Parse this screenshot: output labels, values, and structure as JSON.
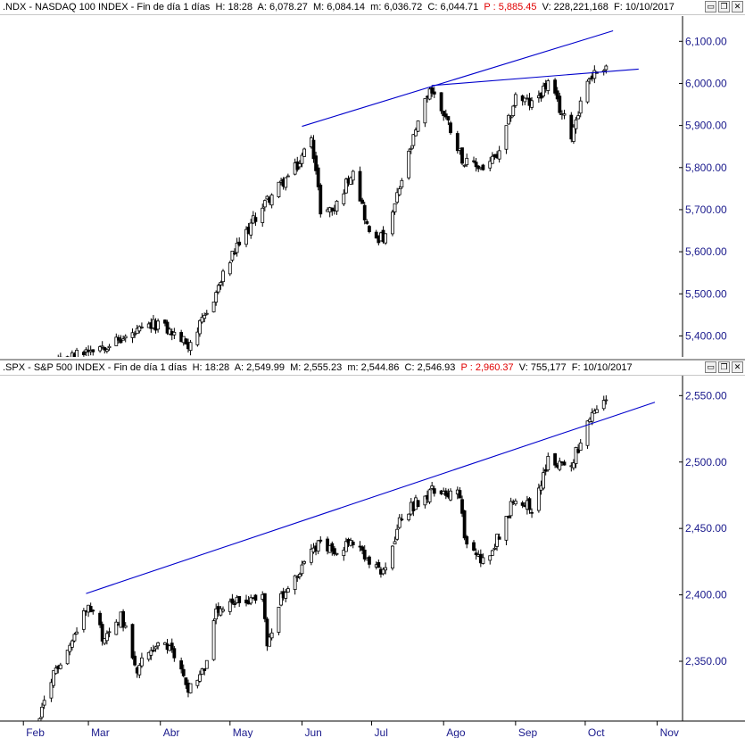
{
  "top_header": {
    "symbol": ".NDX - NASDAQ 100 INDEX - Fin de día 1 días",
    "h": "H: 18:28",
    "a": "A: 6,078.27",
    "m": "M: 6,084.14",
    "mm": "m: 6,036.72",
    "c": "C: 6,044.71",
    "p": "P : 5,885.45",
    "v": "V: 228,221,168",
    "f": "F: 10/10/2017"
  },
  "bottom_header": {
    "symbol": ".SPX - S&P 500 INDEX - Fin de día 1 días",
    "h": "H: 18:28",
    "a": "A: 2,549.99",
    "m": "M: 2,555.23",
    "mm": "m: 2,544.86",
    "c": "C: 2,546.93",
    "p": "P : 2,960.37",
    "v": "V: 755,177",
    "f": "F: 10/10/2017"
  },
  "window_buttons": {
    "minimize": "▭",
    "restore": "❐",
    "close": "✕"
  },
  "colors": {
    "axis_text": "#1a1a8c",
    "trendline": "#0000cc",
    "candle": "#000000",
    "price_red": "#e00000"
  },
  "chart_data": [
    {
      "type": "candlestick",
      "title": ".NDX - NASDAQ 100 INDEX",
      "ylim": [
        5350,
        6160
      ],
      "yticks": [
        "5,400.00",
        "5,500.00",
        "5,600.00",
        "5,700.00",
        "5,800.00",
        "5,900.00",
        "6,000.00",
        "6,100.00"
      ],
      "ytick_values": [
        5400,
        5500,
        5600,
        5700,
        5800,
        5900,
        6000,
        6100
      ],
      "close_path": [
        [
          "2017-02-15",
          5330
        ],
        [
          "2017-03-01",
          5370
        ],
        [
          "2017-03-15",
          5390
        ],
        [
          "2017-03-31",
          5430
        ],
        [
          "2017-04-13",
          5380
        ],
        [
          "2017-04-20",
          5440
        ],
        [
          "2017-05-01",
          5580
        ],
        [
          "2017-05-15",
          5710
        ],
        [
          "2017-05-31",
          5810
        ],
        [
          "2017-06-05",
          5880
        ],
        [
          "2017-06-09",
          5700
        ],
        [
          "2017-06-15",
          5700
        ],
        [
          "2017-06-23",
          5800
        ],
        [
          "2017-06-30",
          5640
        ],
        [
          "2017-07-07",
          5630
        ],
        [
          "2017-07-17",
          5830
        ],
        [
          "2017-07-26",
          5990
        ],
        [
          "2017-08-02",
          5920
        ],
        [
          "2017-08-10",
          5810
        ],
        [
          "2017-08-18",
          5800
        ],
        [
          "2017-08-25",
          5830
        ],
        [
          "2017-09-01",
          5970
        ],
        [
          "2017-09-08",
          5950
        ],
        [
          "2017-09-15",
          6000
        ],
        [
          "2017-09-25",
          5880
        ],
        [
          "2017-10-02",
          6010
        ],
        [
          "2017-10-10",
          6045
        ]
      ],
      "trendlines": [
        {
          "from": [
            "2017-06-01",
            5898
          ],
          "to": [
            "2017-10-13",
            6125
          ]
        },
        {
          "from": [
            "2017-07-27",
            5995
          ],
          "to": [
            "2017-10-24",
            6034
          ]
        }
      ]
    },
    {
      "type": "candlestick",
      "title": ".SPX - S&P 500 INDEX",
      "ylim": [
        2305,
        2565
      ],
      "yticks": [
        "2,350.00",
        "2,400.00",
        "2,450.00",
        "2,500.00",
        "2,550.00"
      ],
      "ytick_values": [
        2350,
        2400,
        2450,
        2500,
        2550
      ],
      "x_labels": [
        "Feb",
        "Mar",
        "Abr",
        "May",
        "Jun",
        "Jul",
        "Ago",
        "Sep",
        "Oct",
        "Nov"
      ],
      "x_label_dates": [
        "2017-02-01",
        "2017-03-01",
        "2017-04-01",
        "2017-05-01",
        "2017-06-01",
        "2017-07-01",
        "2017-08-01",
        "2017-09-01",
        "2017-10-01",
        "2017-11-01"
      ],
      "close_path": [
        [
          "2017-02-07",
          2300
        ],
        [
          "2017-02-15",
          2345
        ],
        [
          "2017-02-22",
          2365
        ],
        [
          "2017-03-01",
          2396
        ],
        [
          "2017-03-08",
          2365
        ],
        [
          "2017-03-15",
          2385
        ],
        [
          "2017-03-22",
          2345
        ],
        [
          "2017-03-31",
          2365
        ],
        [
          "2017-04-07",
          2355
        ],
        [
          "2017-04-13",
          2330
        ],
        [
          "2017-04-20",
          2345
        ],
        [
          "2017-04-25",
          2385
        ],
        [
          "2017-05-05",
          2395
        ],
        [
          "2017-05-15",
          2400
        ],
        [
          "2017-05-17",
          2360
        ],
        [
          "2017-05-22",
          2395
        ],
        [
          "2017-05-31",
          2415
        ],
        [
          "2017-06-05",
          2438
        ],
        [
          "2017-06-15",
          2435
        ],
        [
          "2017-06-23",
          2440
        ],
        [
          "2017-06-29",
          2425
        ],
        [
          "2017-07-06",
          2415
        ],
        [
          "2017-07-14",
          2460
        ],
        [
          "2017-07-26",
          2478
        ],
        [
          "2017-08-02",
          2478
        ],
        [
          "2017-08-08",
          2475
        ],
        [
          "2017-08-10",
          2440
        ],
        [
          "2017-08-18",
          2425
        ],
        [
          "2017-08-25",
          2445
        ],
        [
          "2017-09-01",
          2475
        ],
        [
          "2017-09-08",
          2465
        ],
        [
          "2017-09-15",
          2500
        ],
        [
          "2017-09-25",
          2498
        ],
        [
          "2017-10-02",
          2528
        ],
        [
          "2017-10-10",
          2547
        ]
      ],
      "trendlines": [
        {
          "from": [
            "2017-02-28",
            2401
          ],
          "to": [
            "2017-10-31",
            2545
          ]
        }
      ]
    }
  ]
}
